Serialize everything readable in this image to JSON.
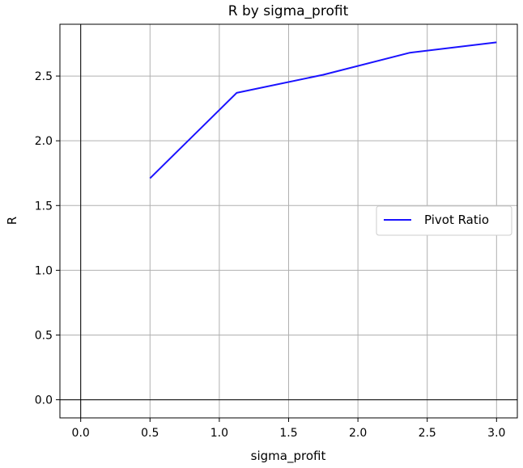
{
  "chart_data": {
    "type": "line",
    "title": "R by sigma_profit",
    "xlabel": "sigma_profit",
    "ylabel": "R",
    "xlim": [
      -0.15,
      3.15
    ],
    "ylim": [
      -0.14,
      2.9
    ],
    "x_ticks": [
      "0.0",
      "0.5",
      "1.0",
      "1.5",
      "2.0",
      "2.5",
      "3.0"
    ],
    "y_ticks": [
      "0.0",
      "0.5",
      "1.0",
      "1.5",
      "2.0",
      "2.5"
    ],
    "grid": true,
    "zero_lines": true,
    "legend_position": "center-right",
    "series": [
      {
        "name": "Pivot Ratio",
        "color": "#1a12ff",
        "x": [
          0.5,
          1.125,
          1.75,
          2.375,
          3.0
        ],
        "y": [
          1.71,
          2.37,
          2.51,
          2.68,
          2.76
        ]
      }
    ]
  }
}
